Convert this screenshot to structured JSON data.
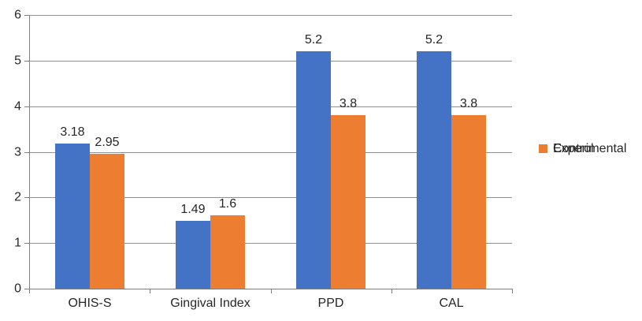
{
  "chart_data": {
    "type": "bar",
    "categories": [
      "OHIS-S",
      "Gingival Index",
      "PPD",
      "CAL"
    ],
    "series": [
      {
        "name": "Experimental",
        "color": "#4472C4",
        "values": [
          3.18,
          1.49,
          5.2,
          5.2
        ],
        "labels": [
          "3.18",
          "1.49",
          "5.2",
          "5.2"
        ]
      },
      {
        "name": "Control",
        "color": "#ED7D31",
        "values": [
          2.95,
          1.6,
          3.8,
          3.8
        ],
        "labels": [
          "2.95",
          "1.6",
          "3.8",
          "3.8"
        ]
      }
    ],
    "ylim": [
      0,
      6
    ],
    "yticks": [
      0,
      1,
      2,
      3,
      4,
      5,
      6
    ],
    "grid": true,
    "data_labels_shown": true,
    "legend_position": "right"
  },
  "colors": {
    "experimental": "#4472C4",
    "control": "#ED7D31",
    "gridline": "#909090",
    "axis": "#7F7F7F",
    "text": "#262626",
    "background": "#FFFFFF"
  }
}
